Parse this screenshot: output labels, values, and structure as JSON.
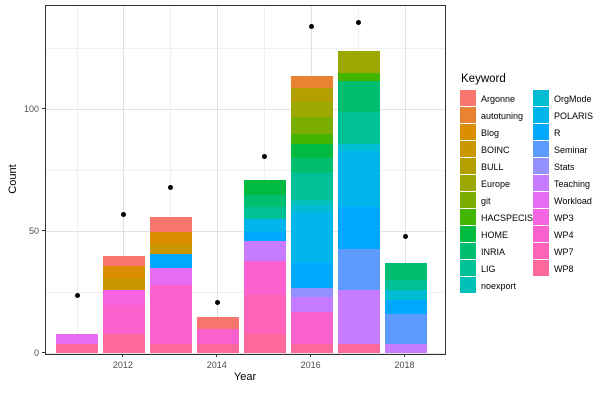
{
  "axes": {
    "x": {
      "title": "Year",
      "ticks": [
        {
          "label": "2012",
          "year": 2012
        },
        {
          "label": "2014",
          "year": 2014
        },
        {
          "label": "2016",
          "year": 2016
        },
        {
          "label": "2018",
          "year": 2018
        }
      ],
      "minor_years": [
        2011,
        2013,
        2015,
        2017
      ]
    },
    "y": {
      "title": "Count",
      "ticks": [
        {
          "label": "0",
          "value": 0
        },
        {
          "label": "50",
          "value": 50
        },
        {
          "label": "100",
          "value": 100
        }
      ],
      "minor_values": [
        25,
        75,
        125
      ]
    }
  },
  "legend": {
    "title": "Keyword",
    "columns": [
      [
        "Argonne",
        "autotuning",
        "Blog",
        "BOINC",
        "BULL",
        "Europe",
        "git",
        "HACSPECIS",
        "HOME",
        "INRIA",
        "LIG",
        "noexport"
      ],
      [
        "OrgMode",
        "POLARIS",
        "R",
        "Seminar",
        "Stats",
        "Teaching",
        "Workload",
        "WP3",
        "WP4",
        "WP7",
        "WP8"
      ]
    ]
  },
  "keywords": {
    "Argonne": "#F8766D",
    "autotuning": "#EA8331",
    "Blog": "#DB8E00",
    "BOINC": "#C99800",
    "BULL": "#B3A000",
    "Europe": "#9CA700",
    "git": "#7BAD00",
    "HACSPECIS": "#43B500",
    "HOME": "#00BA42",
    "INRIA": "#00BE70",
    "LIG": "#00C096",
    "noexport": "#00C0B8",
    "OrgMode": "#00BDD4",
    "POLARIS": "#00B5EC",
    "R": "#00A9FF",
    "Seminar": "#5E9BFF",
    "Stats": "#9590FF",
    "Teaching": "#C77CFF",
    "Workload": "#E76BF3",
    "WP3": "#F763E0",
    "WP4": "#FC61CF",
    "WP7": "#FF62B6",
    "WP8": "#FF689D"
  },
  "chart_data": {
    "type": "bar",
    "stacked": true,
    "xlabel": "Year",
    "ylabel": "Count",
    "xlim": [
      2010.35,
      2019.35
    ],
    "ylim": [
      0,
      143
    ],
    "grid": true,
    "legend_position": "right",
    "point_series_color": "#000000",
    "bars": [
      {
        "year": 2011,
        "total": 8,
        "dot": 24,
        "segments": [
          {
            "keyword": "WP8",
            "value": 4
          },
          {
            "keyword": "Workload",
            "value": 4
          }
        ]
      },
      {
        "year": 2012,
        "total": 40,
        "dot": 57,
        "segments": [
          {
            "keyword": "WP8",
            "value": 8
          },
          {
            "keyword": "WP4",
            "value": 12
          },
          {
            "keyword": "WP3",
            "value": 6
          },
          {
            "keyword": "BOINC",
            "value": 5
          },
          {
            "keyword": "Blog",
            "value": 5
          },
          {
            "keyword": "Argonne",
            "value": 4
          }
        ]
      },
      {
        "year": 2013,
        "total": 56,
        "dot": 68,
        "segments": [
          {
            "keyword": "WP8",
            "value": 4
          },
          {
            "keyword": "WP4",
            "value": 24
          },
          {
            "keyword": "Workload",
            "value": 7
          },
          {
            "keyword": "R",
            "value": 6
          },
          {
            "keyword": "BOINC",
            "value": 4
          },
          {
            "keyword": "Blog",
            "value": 5
          },
          {
            "keyword": "Argonne",
            "value": 6
          }
        ]
      },
      {
        "year": 2014,
        "total": 15,
        "dot": 21,
        "segments": [
          {
            "keyword": "WP8",
            "value": 4
          },
          {
            "keyword": "WP4",
            "value": 6
          },
          {
            "keyword": "Argonne",
            "value": 5
          }
        ]
      },
      {
        "year": 2015,
        "total": 71,
        "dot": 81,
        "segments": [
          {
            "keyword": "WP8",
            "value": 8
          },
          {
            "keyword": "WP7",
            "value": 16
          },
          {
            "keyword": "WP4",
            "value": 14
          },
          {
            "keyword": "Teaching",
            "value": 8
          },
          {
            "keyword": "R",
            "value": 4
          },
          {
            "keyword": "POLARIS",
            "value": 5
          },
          {
            "keyword": "LIG",
            "value": 5
          },
          {
            "keyword": "INRIA",
            "value": 5
          },
          {
            "keyword": "HOME",
            "value": 6
          }
        ]
      },
      {
        "year": 2016,
        "total": 114,
        "dot": 134,
        "segments": [
          {
            "keyword": "WP8",
            "value": 4
          },
          {
            "keyword": "WP4",
            "value": 13
          },
          {
            "keyword": "Teaching",
            "value": 6
          },
          {
            "keyword": "Stats",
            "value": 4
          },
          {
            "keyword": "R",
            "value": 10
          },
          {
            "keyword": "POLARIS",
            "value": 21
          },
          {
            "keyword": "OrgMode",
            "value": 3
          },
          {
            "keyword": "noexport",
            "value": 2
          },
          {
            "keyword": "LIG",
            "value": 11
          },
          {
            "keyword": "INRIA",
            "value": 6
          },
          {
            "keyword": "HOME",
            "value": 6
          },
          {
            "keyword": "HACSPECIS",
            "value": 4
          },
          {
            "keyword": "git",
            "value": 7
          },
          {
            "keyword": "Europe",
            "value": 6
          },
          {
            "keyword": "BULL",
            "value": 6
          },
          {
            "keyword": "autotuning",
            "value": 5
          }
        ]
      },
      {
        "year": 2017,
        "total": 124,
        "dot": 136,
        "segments": [
          {
            "keyword": "WP8",
            "value": 4
          },
          {
            "keyword": "Teaching",
            "value": 22
          },
          {
            "keyword": "Seminar",
            "value": 17
          },
          {
            "keyword": "R",
            "value": 17
          },
          {
            "keyword": "POLARIS",
            "value": 23
          },
          {
            "keyword": "OrgMode",
            "value": 3
          },
          {
            "keyword": "LIG",
            "value": 13
          },
          {
            "keyword": "INRIA",
            "value": 13
          },
          {
            "keyword": "HACSPECIS",
            "value": 3
          },
          {
            "keyword": "Europe",
            "value": 9
          }
        ]
      },
      {
        "year": 2018,
        "total": 37,
        "dot": 48,
        "segments": [
          {
            "keyword": "Teaching",
            "value": 4
          },
          {
            "keyword": "Seminar",
            "value": 12
          },
          {
            "keyword": "R",
            "value": 6
          },
          {
            "keyword": "OrgMode",
            "value": 4
          },
          {
            "keyword": "LIG",
            "value": 4
          },
          {
            "keyword": "INRIA",
            "value": 7
          }
        ]
      }
    ]
  }
}
